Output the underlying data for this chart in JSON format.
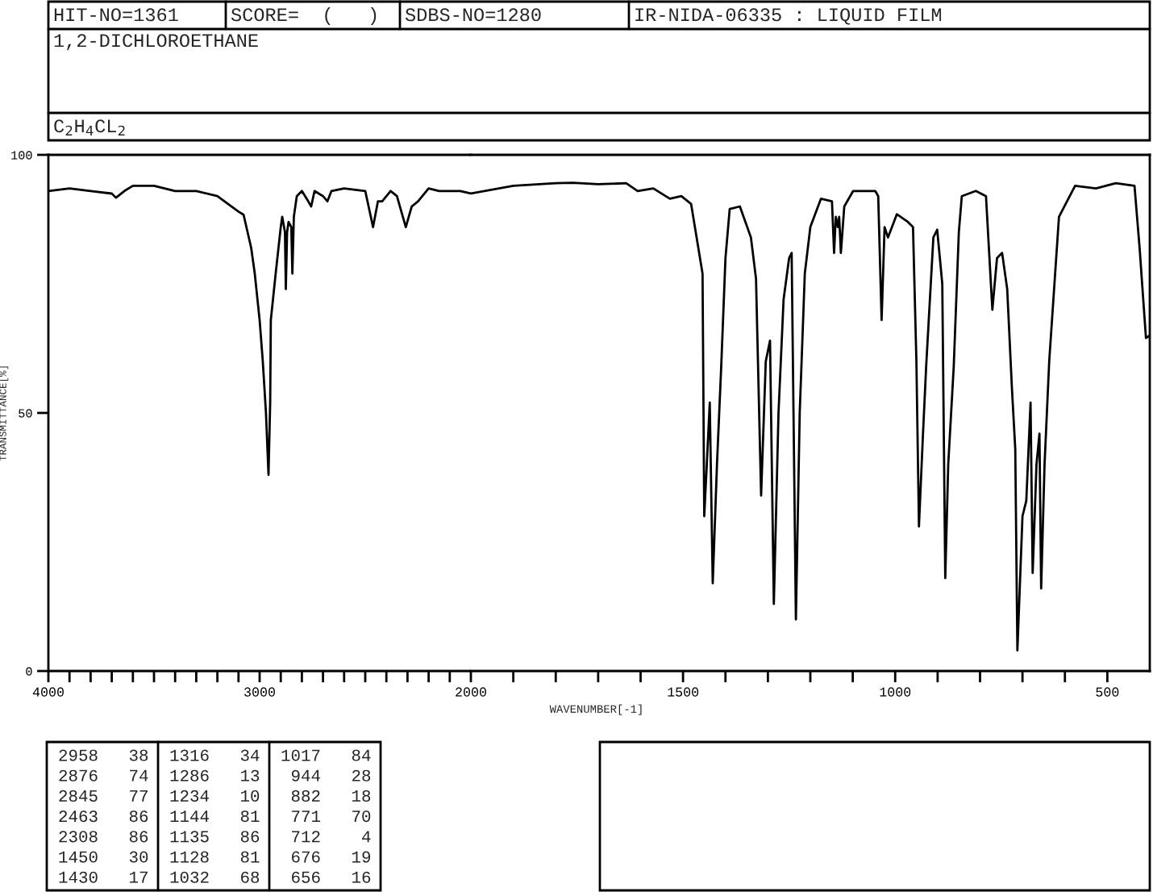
{
  "chart_data": [
    {
      "type": "line",
      "title": "1,2-DICHLOROETHANE",
      "subtitle": "C$_{2}$H$_{4}$CL$_{2}$",
      "ylabel": "TRANSMITTANCE[%]",
      "color": "#000000",
      "x": [
        4000,
        3900,
        3800,
        3700,
        3680,
        3640,
        3600,
        3500,
        3400,
        3300,
        3200,
        3100,
        3076,
        3040,
        3023,
        3000,
        2985,
        2970,
        2958,
        2950,
        2947,
        2924,
        2900,
        2893,
        2880,
        2876,
        2870,
        2863,
        2850,
        2845,
        2838,
        2824,
        2800,
        2770,
        2756,
        2740,
        2700,
        2679,
        2660,
        2600,
        2500,
        2463,
        2440,
        2420,
        2380,
        2350,
        2308,
        2280,
        2250,
        2200,
        2150,
        2115,
        2050,
        2000
      ],
      "values": [
        93,
        93.5,
        93,
        92.5,
        91.7,
        93,
        94,
        94,
        93,
        93,
        92,
        89,
        88.4,
        82,
        77,
        68,
        60,
        50,
        38,
        52,
        68,
        77,
        86,
        88,
        85,
        74,
        85,
        87,
        86,
        77,
        88,
        92,
        93,
        91,
        90,
        93,
        92,
        91,
        93,
        93.5,
        93,
        86,
        91,
        91,
        93,
        92,
        86,
        90,
        91,
        93.5,
        93,
        93,
        93,
        92.5
      ],
      "xlim": [
        4000,
        2000
      ],
      "ylim": [
        0,
        100
      ],
      "yticks": [
        0,
        50,
        100
      ],
      "xticks": [
        {
          "value": 4000,
          "label": "4000"
        },
        {
          "value": 3900,
          "label": null
        },
        {
          "value": 3800,
          "label": null
        },
        {
          "value": 3700,
          "label": null
        },
        {
          "value": 3600,
          "label": null
        },
        {
          "value": 3500,
          "label": null
        },
        {
          "value": 3400,
          "label": null
        },
        {
          "value": 3300,
          "label": null
        },
        {
          "value": 3200,
          "label": null
        },
        {
          "value": 3100,
          "label": null
        },
        {
          "value": 3000,
          "label": "3000"
        },
        {
          "value": 2900,
          "label": null
        },
        {
          "value": 2800,
          "label": null
        },
        {
          "value": 2700,
          "label": null
        },
        {
          "value": 2600,
          "label": null
        },
        {
          "value": 2500,
          "label": null
        },
        {
          "value": 2400,
          "label": null
        },
        {
          "value": 2300,
          "label": null
        },
        {
          "value": 2200,
          "label": null
        },
        {
          "value": 2100,
          "label": null
        }
      ],
      "grid": false,
      "annotations": [
        "HIT-NO=1361",
        "SCORE=  (   )",
        "SDBS-NO=1280",
        "IR-NIDA-06335 : LIQUID FILM",
        "2958   38",
        "2876   74",
        "2845   77",
        "2463   86",
        "2308   86",
        "1450   30",
        "1430   17",
        "1316   34",
        "1286   13",
        "1234   10",
        "1144   81",
        "1135   86",
        "1128   81",
        "1032   68",
        "1017   84",
        " 944   28",
        " 882   18",
        " 771   70",
        " 712    4",
        " 676   19",
        " 656   16"
      ]
    },
    {
      "type": "line",
      "xlabel": "WAVENUMBER[-1]",
      "color": "#000000",
      "x": [
        2000,
        1900,
        1800,
        1760,
        1700,
        1634,
        1607,
        1570,
        1531,
        1504,
        1481,
        1470,
        1454,
        1450,
        1444,
        1437,
        1430,
        1420,
        1410,
        1400,
        1390,
        1366,
        1340,
        1328,
        1316,
        1305,
        1295,
        1286,
        1275,
        1263,
        1250,
        1244,
        1234,
        1225,
        1213,
        1200,
        1175,
        1149,
        1144,
        1140,
        1135,
        1132,
        1128,
        1120,
        1099,
        1047,
        1040,
        1032,
        1025,
        1017,
        996,
        970,
        958,
        950,
        944,
        935,
        927,
        910,
        901,
        889,
        882,
        875,
        862,
        850,
        843,
        810,
        786,
        771,
        760,
        748,
        736,
        725,
        717,
        712,
        700,
        691,
        681,
        676,
        667,
        660,
        656,
        648,
        637,
        614,
        576,
        527,
        480,
        436,
        424,
        409,
        400
      ],
      "values": [
        92.5,
        94,
        94.5,
        94.6,
        94.3,
        94.5,
        93,
        93.5,
        91.5,
        92,
        90.5,
        85,
        77,
        30,
        40,
        52,
        17,
        40,
        59,
        80,
        89.5,
        90,
        84,
        76,
        34,
        60,
        64,
        13,
        50,
        72,
        80,
        81,
        10,
        50,
        77,
        86,
        91.5,
        91,
        81,
        88,
        86,
        88,
        81,
        90,
        93,
        93,
        92,
        68,
        86,
        84,
        88.5,
        87,
        86,
        60,
        28,
        45,
        59,
        84,
        85.5,
        75,
        18,
        40,
        59,
        85,
        92,
        93,
        92,
        70,
        80,
        81,
        74,
        55,
        43,
        4,
        30,
        33,
        52,
        19,
        40,
        46,
        16,
        40,
        60,
        88,
        94,
        93.5,
        94.5,
        94,
        82,
        64.5,
        65
      ],
      "xlim": [
        2000,
        400
      ],
      "ylim": [
        0,
        100
      ],
      "xticks": [
        {
          "value": 2000,
          "label": "2000"
        },
        {
          "value": 1900,
          "label": null
        },
        {
          "value": 1800,
          "label": null
        },
        {
          "value": 1700,
          "label": null
        },
        {
          "value": 1600,
          "label": null
        },
        {
          "value": 1500,
          "label": "1500"
        },
        {
          "value": 1400,
          "label": null
        },
        {
          "value": 1300,
          "label": null
        },
        {
          "value": 1200,
          "label": null
        },
        {
          "value": 1100,
          "label": null
        },
        {
          "value": 1000,
          "label": "1000"
        },
        {
          "value": 900,
          "label": null
        },
        {
          "value": 800,
          "label": null
        },
        {
          "value": 700,
          "label": null
        },
        {
          "value": 600,
          "label": null
        },
        {
          "value": 500,
          "label": "500"
        }
      ],
      "tick_labels": "x",
      "grid": false
    }
  ]
}
